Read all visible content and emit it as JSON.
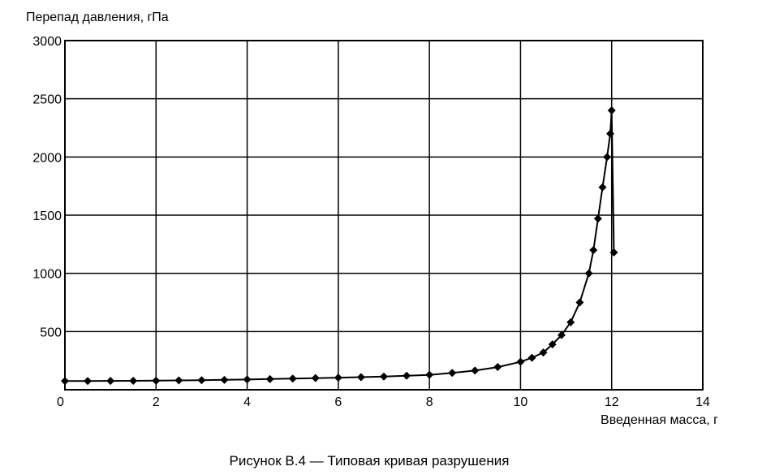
{
  "chart_data": {
    "type": "line",
    "title": "",
    "caption": "Рисунок В.4 — Типовая кривая разрушения",
    "xlabel": "Введенная масса, г",
    "ylabel": "Перепад давления, гПа",
    "xlim": [
      0,
      14
    ],
    "ylim": [
      0,
      3000
    ],
    "x_ticks": [
      "0",
      "2",
      "4",
      "6",
      "8",
      "10",
      "12",
      "14"
    ],
    "y_ticks": [
      "500",
      "1000",
      "1500",
      "2000",
      "2500",
      "3000"
    ],
    "grid": true,
    "marker": "diamond",
    "series": [
      {
        "x": [
          0,
          0.5,
          1,
          1.5,
          2,
          2.5,
          3,
          3.5,
          4,
          4.5,
          5,
          5.5,
          6,
          6.5,
          7,
          7.5,
          8,
          8.5,
          9,
          9.5,
          10,
          10.25,
          10.5,
          10.7,
          10.9,
          11.1,
          11.3,
          11.5,
          11.6,
          11.7,
          11.8,
          11.9,
          11.97,
          12.0,
          12.05
        ],
        "y": [
          75,
          75,
          76,
          77,
          78,
          80,
          82,
          85,
          88,
          92,
          96,
          100,
          104,
          108,
          113,
          120,
          128,
          145,
          165,
          195,
          240,
          275,
          320,
          390,
          470,
          580,
          750,
          1000,
          1200,
          1470,
          1740,
          2000,
          2200,
          2400,
          1180
        ]
      }
    ]
  }
}
